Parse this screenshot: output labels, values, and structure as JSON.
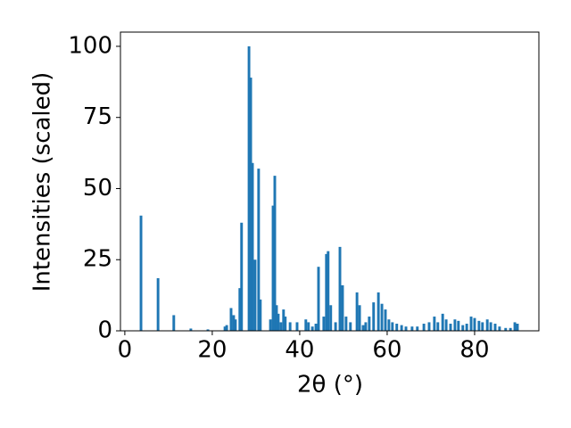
{
  "chart_data": {
    "type": "bar",
    "xlabel": "2θ (°)",
    "ylabel": "Intensities (scaled)",
    "color": "#1f77b4",
    "x": [
      3.7,
      7.6,
      11.2,
      15.1,
      19,
      22.9,
      23.3,
      24.3,
      24.9,
      25.3,
      26.3,
      26.7,
      28.4,
      28.8,
      29.2,
      29.8,
      30.6,
      31.0,
      33.3,
      33.9,
      34.3,
      34.7,
      35.1,
      35.7,
      36.3,
      36.7,
      37.8,
      39.4,
      41.4,
      42,
      42.9,
      43.7,
      44.3,
      45.5,
      46.1,
      46.5,
      47.1,
      48.2,
      49.2,
      49.8,
      50.6,
      51.6,
      53.1,
      53.7,
      54.5,
      55.1,
      55.9,
      56.9,
      58,
      58.8,
      59.6,
      60.4,
      61.2,
      62.2,
      63.3,
      64.3,
      65.7,
      66.9,
      68.4,
      69.6,
      70.8,
      71.6,
      72.7,
      73.5,
      74.5,
      75.5,
      76.3,
      77.3,
      78.2,
      79.2,
      80,
      81,
      81.8,
      82.9,
      83.7,
      84.7,
      85.7,
      87.1,
      88.2,
      89.2,
      89.8
    ],
    "values": [
      40.5,
      18.5,
      5.5,
      0.8,
      0.5,
      1.5,
      2,
      8,
      5.5,
      4,
      15,
      38,
      100,
      89,
      59,
      25,
      57,
      11,
      4,
      44,
      54.5,
      9,
      6,
      3,
      7.5,
      5,
      3,
      3,
      4,
      3,
      1.5,
      2.5,
      22.5,
      5,
      27,
      28,
      9,
      3,
      29.5,
      16,
      5,
      3,
      13.5,
      9,
      2,
      3,
      5,
      10,
      13.5,
      9.5,
      7.5,
      4,
      3,
      2.5,
      2,
      1.5,
      1.5,
      1.5,
      2.5,
      3,
      5,
      3,
      6,
      4,
      2.5,
      4,
      3.5,
      2,
      2.5,
      5,
      4.5,
      3.5,
      3,
      4,
      3,
      2.5,
      1.5,
      1,
      1,
      3,
      2.5
    ],
    "xlim": [
      -1,
      94.7
    ],
    "xticks": [
      0,
      20,
      40,
      60,
      80
    ],
    "ylim": [
      0,
      105
    ],
    "yticks": [
      0,
      25,
      50,
      75,
      100
    ]
  }
}
